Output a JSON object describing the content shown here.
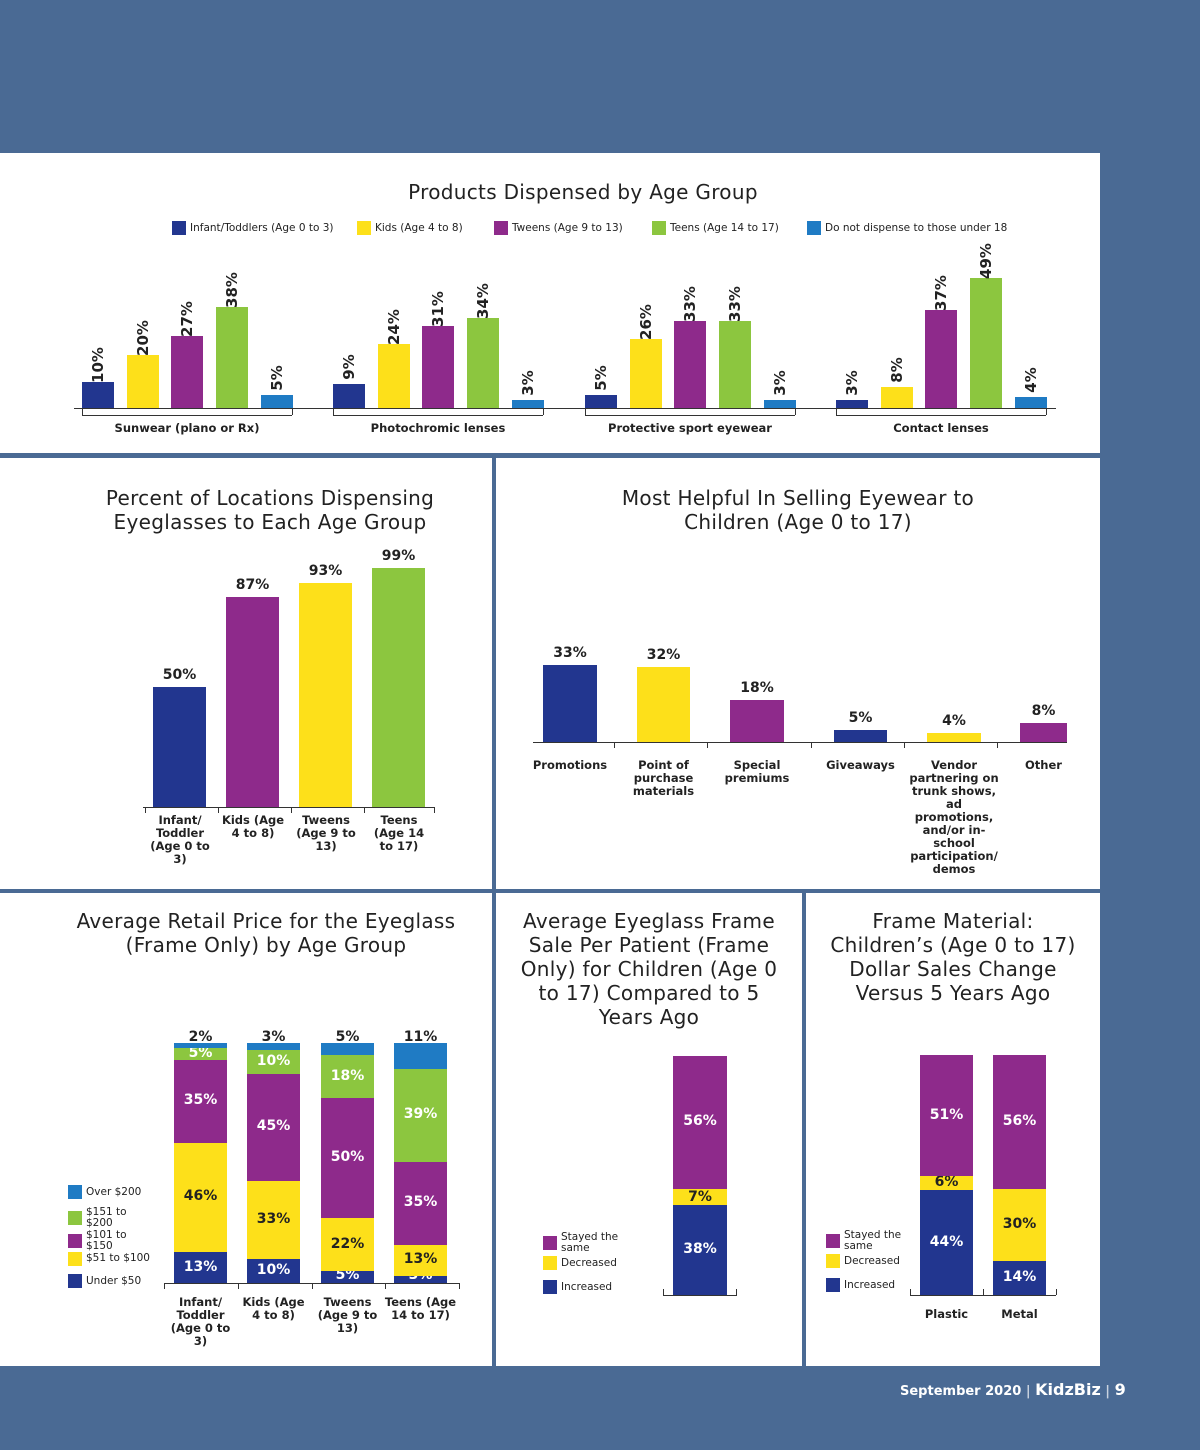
{
  "colors": {
    "infant": "#22368f",
    "kids": "#fde01a",
    "tweens": "#8e2a8b",
    "teens": "#8cc63f",
    "none": "#1f7bc4"
  },
  "footer": {
    "date": "September 2020",
    "brand": "KidzBiz",
    "page": "9"
  },
  "chart_data": [
    {
      "id": "products",
      "type": "bar",
      "title": "Products Dispensed by Age Group",
      "legend": [
        "Infant/Toddlers (Age 0 to 3)",
        "Kids (Age 4 to 8)",
        "Tweens (Age 9 to 13)",
        "Teens (Age 14 to 17)",
        "Do not dispense to those under 18"
      ],
      "categories": [
        "Sunwear (plano or Rx)",
        "Photochromic lenses",
        "Protective sport eyewear",
        "Contact lenses"
      ],
      "series": [
        {
          "name": "Infant/Toddlers (Age 0 to 3)",
          "values": [
            10,
            9,
            5,
            3
          ]
        },
        {
          "name": "Kids (Age 4 to 8)",
          "values": [
            20,
            24,
            26,
            8
          ]
        },
        {
          "name": "Tweens (Age 9 to 13)",
          "values": [
            27,
            31,
            33,
            37
          ]
        },
        {
          "name": "Teens (Age 14 to 17)",
          "values": [
            38,
            34,
            33,
            49
          ]
        },
        {
          "name": "Do not dispense to those under 18",
          "values": [
            5,
            3,
            3,
            4
          ]
        }
      ],
      "unit": "%"
    },
    {
      "id": "locations",
      "type": "bar",
      "title": "Percent of Locations Dispensing Eyeglasses to Each Age Group",
      "categories": [
        "Infant/ Toddler (Age 0 to 3)",
        "Kids (Age 4 to 8)",
        "Tweens (Age 9 to 13)",
        "Teens (Age 14 to 17)"
      ],
      "values": [
        50,
        87,
        93,
        99
      ],
      "unit": "%"
    },
    {
      "id": "helpful",
      "type": "bar",
      "title": "Most Helpful In Selling Eyewear to Children (Age 0 to 17)",
      "categories": [
        "Promotions",
        "Point of purchase materials",
        "Special premiums",
        "Giveaways",
        "Vendor partnering on trunk shows, ad promotions, and/or in-school participation/ demos",
        "Other"
      ],
      "values": [
        33,
        32,
        18,
        5,
        4,
        8
      ],
      "unit": "%"
    },
    {
      "id": "price",
      "type": "bar",
      "stacked": true,
      "title": "Average Retail Price for the Eyeglass (Frame Only) by Age Group",
      "categories": [
        "Infant/ Toddler (Age 0 to 3)",
        "Kids (Age 4 to 8)",
        "Tweens (Age 9 to 13)",
        "Teens (Age 14 to 17)"
      ],
      "legend": [
        "Over $200",
        "$151 to $200",
        "$101 to $150",
        "$51 to $100",
        "Under $50"
      ],
      "series": [
        {
          "name": "Under $50",
          "values": [
            13,
            10,
            5,
            3
          ]
        },
        {
          "name": "$51 to $100",
          "values": [
            46,
            33,
            22,
            13
          ]
        },
        {
          "name": "$101 to $150",
          "values": [
            35,
            45,
            50,
            35
          ]
        },
        {
          "name": "$151 to $200",
          "values": [
            5,
            10,
            18,
            39
          ]
        },
        {
          "name": "Over $200",
          "values": [
            2,
            3,
            5,
            11
          ]
        }
      ],
      "unit": "%"
    },
    {
      "id": "sale",
      "type": "bar",
      "stacked": true,
      "title": "Average Eyeglass Frame Sale Per Patient (Frame Only) for Children (Age 0 to 17) Compared to 5 Years Ago",
      "categories": [
        ""
      ],
      "legend": [
        "Stayed the same",
        "Decreased",
        "Increased"
      ],
      "series": [
        {
          "name": "Increased",
          "values": [
            38
          ]
        },
        {
          "name": "Decreased",
          "values": [
            7
          ]
        },
        {
          "name": "Stayed the same",
          "values": [
            56
          ]
        }
      ],
      "unit": "%"
    },
    {
      "id": "material",
      "type": "bar",
      "stacked": true,
      "title": "Frame Material: Children’s (Age 0 to 17) Dollar Sales Change Versus 5 Years Ago",
      "categories": [
        "Plastic",
        "Metal"
      ],
      "legend": [
        "Stayed the same",
        "Decreased",
        "Increased"
      ],
      "series": [
        {
          "name": "Increased",
          "values": [
            44,
            14
          ]
        },
        {
          "name": "Decreased",
          "values": [
            6,
            30
          ]
        },
        {
          "name": "Stayed the same",
          "values": [
            51,
            56
          ]
        }
      ],
      "unit": "%"
    }
  ]
}
